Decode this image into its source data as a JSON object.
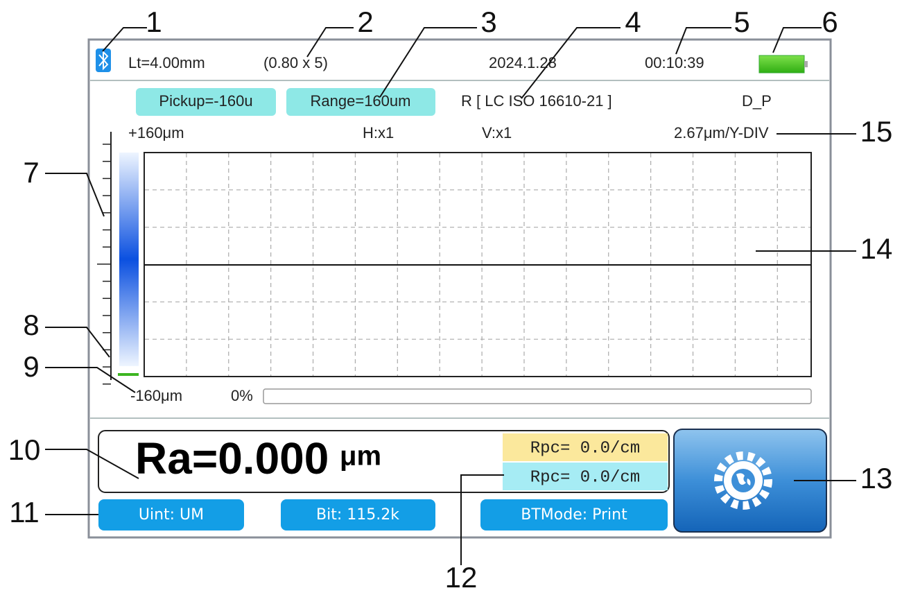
{
  "status_bar": {
    "length": "Lt=4.00mm",
    "cutoff": "(0.80 x 5)",
    "date": "2024.1.28",
    "time": "00:10:39"
  },
  "info_row": {
    "pickup": "Pickup=-160u",
    "range": "Range=160um",
    "filter": "R [ LC ISO 16610-21 ]",
    "mode": "D_P"
  },
  "scale_row": {
    "top": "+160μm",
    "h_zoom": "H:x1",
    "v_zoom": "V:x1",
    "div": "2.67μm/Y-DIV"
  },
  "bottom_row": {
    "bottom": "-160μm",
    "progress": "0%"
  },
  "result": {
    "main": "Ra=0.000",
    "unit": "μm",
    "rpc_1": "Rpc= 0.0/cm",
    "rpc_2": "Rpc= 0.0/cm"
  },
  "buttons": {
    "unit": "Uint: UM",
    "bit": "Bit: 115.2k",
    "bt_mode": "BTMode: Print"
  },
  "callouts": [
    "1",
    "2",
    "3",
    "4",
    "5",
    "6",
    "7",
    "8",
    "9",
    "10",
    "11",
    "12",
    "13",
    "14",
    "15"
  ]
}
